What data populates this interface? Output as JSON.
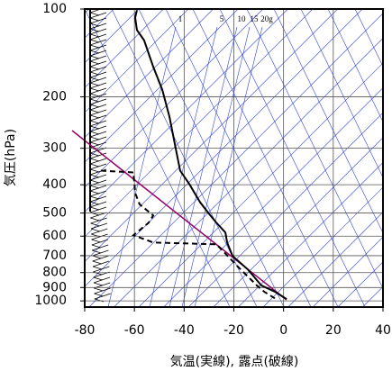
{
  "chart_data": {
    "type": "line",
    "xlabel": "気温(実線), 露点(破線)",
    "ylabel": "気圧(hPa)",
    "annotations": [
      "1",
      "5",
      "10",
      "15",
      "20g"
    ],
    "xlim": [
      -80,
      40
    ],
    "xticks": [
      -80,
      -60,
      -40,
      -20,
      0,
      20,
      40
    ],
    "ylim": [
      100,
      1050
    ],
    "ylog": true,
    "yticks": [
      100,
      200,
      300,
      400,
      500,
      600,
      700,
      800,
      900,
      1000
    ],
    "grid": true,
    "series": [
      {
        "color": "#000000",
        "dashed": false,
        "x": [
          -59,
          -59.7,
          -59,
          -56.1,
          -52.4,
          -48.8,
          -45.9,
          -43.4,
          -41.6,
          -37.9,
          -33.6,
          -30,
          -27,
          -23.4,
          -22.7,
          -20.5,
          -14.4,
          -8.9,
          -3.5,
          1.2
        ],
        "values": [
          101,
          107,
          118,
          128,
          158,
          189,
          234,
          300,
          358,
          398,
          459,
          503,
          540,
          583,
          631,
          702,
          780,
          886,
          930,
          986
        ]
      },
      {
        "color": "#000000",
        "dashed": true,
        "x": [
          -73.5,
          -60.4,
          -59.7,
          -57.9,
          -52.4,
          -54.3,
          -60.4,
          -52.4,
          -27,
          -24.2,
          -19.1,
          -10.7,
          -7.8,
          -3.5
        ],
        "values": [
          358,
          363,
          427,
          467,
          510,
          540,
          596,
          631,
          640,
          677,
          753,
          886,
          930,
          980
        ]
      }
    ]
  }
}
